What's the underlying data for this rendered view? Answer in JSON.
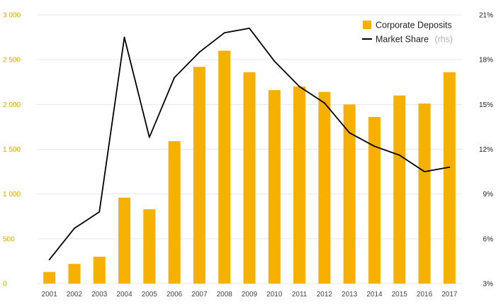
{
  "chart_data": {
    "type": "bar+line",
    "title": "",
    "categories": [
      "2001",
      "2002",
      "2003",
      "2004",
      "2005",
      "2006",
      "2007",
      "2008",
      "2009",
      "2010",
      "2011",
      "2012",
      "2013",
      "2014",
      "2015",
      "2016",
      "2017"
    ],
    "series": [
      {
        "name": "Corporate Deposits",
        "type": "bar",
        "axis": "left",
        "color": "#f5b000",
        "values": [
          130,
          220,
          300,
          960,
          830,
          1590,
          2420,
          2600,
          2360,
          2160,
          2200,
          2140,
          2000,
          1860,
          2100,
          2010,
          2360
        ]
      },
      {
        "name": "Market Share",
        "name_suffix": "(rhs)",
        "type": "line",
        "axis": "right",
        "color": "#000000",
        "values": [
          4.6,
          6.7,
          7.8,
          19.5,
          12.8,
          16.8,
          18.5,
          19.8,
          20.1,
          17.9,
          16.2,
          15.1,
          13.1,
          12.2,
          11.6,
          10.5,
          10.8
        ]
      }
    ],
    "left_axis": {
      "min": 0,
      "max": 3000,
      "ticks": [
        0,
        500,
        1000,
        1500,
        2000,
        2500,
        3000
      ],
      "tick_labels": [
        "0",
        "500",
        "1 000",
        "1 500",
        "2 000",
        "2 500",
        "3 000"
      ]
    },
    "right_axis": {
      "min": 3,
      "max": 21,
      "ticks": [
        3,
        6,
        9,
        12,
        15,
        18,
        21
      ],
      "tick_labels": [
        "3%",
        "6%",
        "9%",
        "12%",
        "15%",
        "18%",
        "21%"
      ]
    },
    "grid": true,
    "legend_position": "top-right"
  }
}
